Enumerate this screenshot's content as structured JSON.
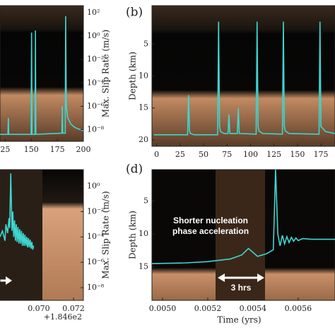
{
  "chart_data": [
    {
      "type": "line",
      "label": null,
      "ylabel": "Max. Slip Rate (m/s)",
      "log_y": true,
      "y_axis_side": "right",
      "xlim": [
        120,
        200
      ],
      "ylim": [
        1e-09,
        400
      ],
      "xticks": [
        {
          "value": 125,
          "label": "25"
        },
        150,
        175,
        200
      ],
      "yticks": [
        {
          "value": 100,
          "label": "10²"
        },
        {
          "value": 1,
          "label": "10⁰"
        },
        {
          "value": 0.01,
          "label": "10⁻²"
        },
        {
          "value": 0.0001,
          "label": "10⁻⁴"
        },
        {
          "value": 1e-06,
          "label": "10⁻⁶"
        },
        {
          "value": 1e-08,
          "label": "10⁻⁸"
        }
      ],
      "series": [
        {
          "name": null,
          "color": "#3fd6d0",
          "x": [
            120,
            127.6,
            128,
            128.4,
            149.8,
            150.3,
            150.8,
            153.6,
            154,
            154.4,
            179.4,
            179.8,
            180.2,
            182.6,
            183,
            183.6,
            185,
            188,
            192,
            200
          ],
          "values": [
            4e-09,
            4e-09,
            1e-07,
            4e-09,
            4e-09,
            2,
            4e-09,
            4e-09,
            3,
            4e-09,
            5e-09,
            1e-06,
            5e-09,
            5e-09,
            50,
            1e-06,
            1e-07,
            3e-08,
            1.5e-08,
            8e-09
          ]
        }
      ]
    },
    {
      "type": "line",
      "label": "(b)",
      "ylabel": "Depth (km)",
      "log_y": false,
      "y_axis_side": "left",
      "invert_y": true,
      "xlim": [
        -5,
        190
      ],
      "ylim": [
        21,
        -1
      ],
      "xticks": [
        0,
        25,
        50,
        75,
        100,
        125,
        150,
        175
      ],
      "yticks": [
        5,
        10,
        15,
        20
      ],
      "series": [
        {
          "name": null,
          "color": "#3fd6d0",
          "x": [
            -3,
            33,
            34,
            35,
            36,
            40,
            65,
            66,
            67,
            68,
            72,
            76,
            77,
            78,
            86,
            87,
            88,
            106,
            107,
            108,
            109,
            113,
            134,
            135,
            136,
            137,
            141,
            172,
            173,
            174,
            175,
            180,
            190
          ],
          "values": [
            19.2,
            19.2,
            13,
            18.6,
            19,
            19.2,
            19.2,
            1.5,
            17.8,
            18.7,
            19,
            19,
            16,
            19,
            19,
            15,
            19,
            19.1,
            1.5,
            17.8,
            18.6,
            19,
            19.1,
            1.5,
            17.8,
            18.6,
            19,
            19.1,
            19.1,
            1.5,
            17.9,
            18.7,
            19
          ]
        }
      ]
    },
    {
      "type": "line",
      "label": null,
      "ylabel": "Max. Slip Rate (m/s)",
      "log_y": true,
      "y_axis_side": "right",
      "xlim": [
        0.06776,
        0.07257
      ],
      "ylim": [
        1e-09,
        20
      ],
      "xticks": [
        {
          "value": 0.07,
          "label": "0.070"
        },
        {
          "value": 0.072,
          "label": "0.072"
        }
      ],
      "x_offset": "+1.846e2",
      "yticks": [
        {
          "value": 1,
          "label": "10⁰"
        },
        {
          "value": 0.01,
          "label": "10⁻²"
        },
        {
          "value": 0.0001,
          "label": "10⁻⁴"
        },
        {
          "value": 1e-06,
          "label": "10⁻⁶"
        },
        {
          "value": 1e-08,
          "label": "10⁻⁸"
        }
      ],
      "series": [
        {
          "name": null,
          "color": "#3fd6d0",
          "x": [
            0.06776,
            0.0679,
            0.06805,
            0.0681,
            0.0682,
            0.06828,
            0.06832,
            0.06838,
            0.06845,
            0.0685,
            0.06855,
            0.0686,
            0.06865,
            0.0687,
            0.06875,
            0.0688,
            0.06885,
            0.0689,
            0.06895,
            0.069,
            0.06905,
            0.0691,
            0.06915,
            0.0692,
            0.06925,
            0.0693,
            0.06935,
            0.0694,
            0.06945,
            0.0695,
            0.06955,
            0.0696,
            0.06965,
            0.0697
          ],
          "values": [
            0.0001,
            0.0003,
            5e-05,
            0.001,
            0.0002,
            0.003,
            0.0005,
            10,
            0.0003,
            0.01,
            0.0001,
            0.002,
            5e-05,
            0.001,
            4e-05,
            0.0006,
            3e-05,
            0.0004,
            3e-05,
            0.0003,
            2e-05,
            0.0002,
            2e-05,
            0.00015,
            2e-05,
            0.0001,
            1.5e-05,
            8e-05,
            1.5e-05,
            6e-05,
            1.2e-05,
            4e-05,
            1e-05,
            2e-05
          ]
        }
      ]
    },
    {
      "type": "line",
      "label": "(d)",
      "ylabel": "Depth (km)",
      "xlabel": "Time (yrs)",
      "log_y": false,
      "y_axis_side": "left",
      "invert_y": true,
      "xlim": [
        0.004953,
        0.005763
      ],
      "ylim": [
        20.1,
        0.2
      ],
      "xticks": [
        {
          "value": 0.005,
          "label": "0.0050"
        },
        {
          "value": 0.0052,
          "label": "0.0052"
        },
        {
          "value": 0.0054,
          "label": "0.0054"
        },
        {
          "value": 0.0056,
          "label": "0.0056"
        }
      ],
      "yticks": [
        5,
        10,
        15
      ],
      "annotation": [
        "Shorter nucleation",
        "phase acceleration"
      ],
      "arrow_label": "3 hrs",
      "series": [
        {
          "name": null,
          "color": "#3fd6d0",
          "x": [
            0.004953,
            0.0051,
            0.0052,
            0.0053,
            0.00535,
            0.00538,
            0.0054,
            0.00542,
            0.00546,
            0.00549,
            0.0055,
            0.00551,
            0.00552,
            0.00553,
            0.00554,
            0.00555,
            0.00556,
            0.00557,
            0.00558,
            0.00559,
            0.0056,
            0.00562,
            0.00566,
            0.0057,
            0.005763
          ],
          "values": [
            14.5,
            14.4,
            14.2,
            13.8,
            13.2,
            12.2,
            12.8,
            13.4,
            13.0,
            12.4,
            0.2,
            10.0,
            11.8,
            10.2,
            11.5,
            10.4,
            11.3,
            10.5,
            11.1,
            10.6,
            11.0,
            10.7,
            10.8,
            10.8,
            10.8
          ]
        }
      ]
    }
  ]
}
